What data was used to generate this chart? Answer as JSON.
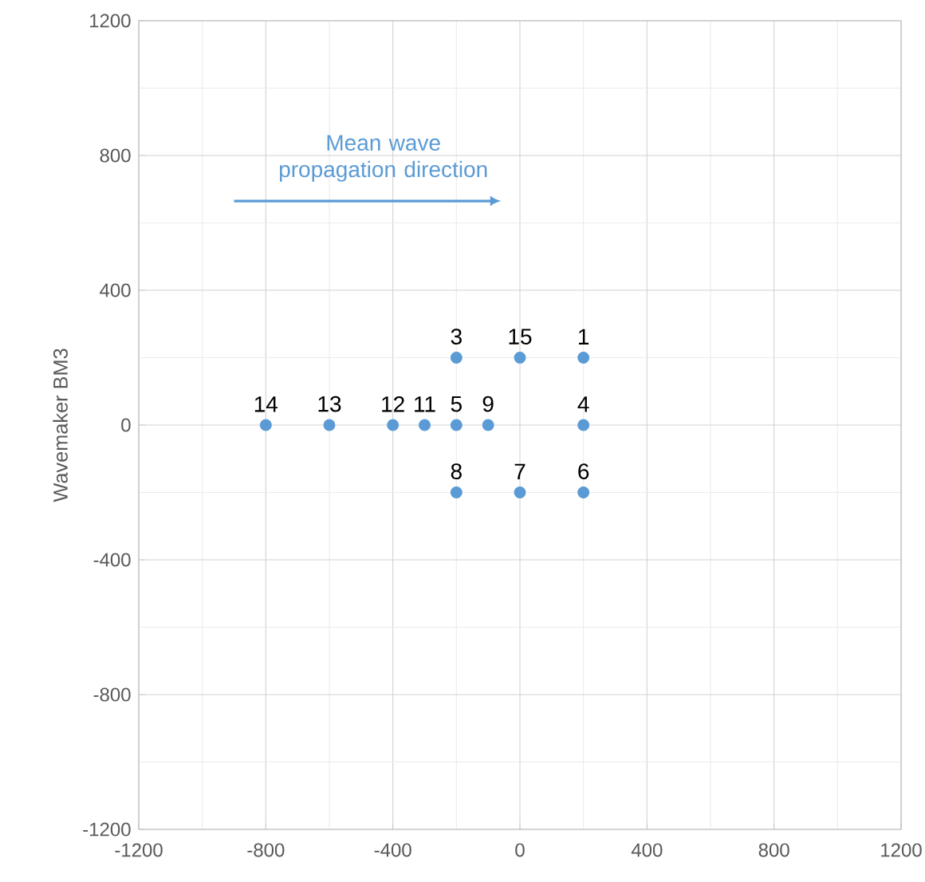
{
  "chart_data": {
    "type": "scatter",
    "ylabel": "Wavemaker BM3",
    "xlim": [
      -1200,
      1200
    ],
    "ylim": [
      -1200,
      1200
    ],
    "xticks": [
      -1200,
      -800,
      -400,
      0,
      400,
      800,
      1200
    ],
    "yticks": [
      -1200,
      -800,
      -400,
      0,
      400,
      800,
      1200
    ],
    "grid": true,
    "marker": "circle",
    "series": [
      {
        "color": "#5b9bd5",
        "x": [
          200,
          -200,
          200,
          -200,
          200,
          0,
          -200,
          -100,
          -300,
          -400,
          -600,
          -800,
          0
        ],
        "values": [
          200,
          200,
          0,
          0,
          -200,
          -200,
          -200,
          0,
          0,
          0,
          0,
          0,
          200
        ]
      }
    ],
    "annotations": [
      "Mean wave propagation direction",
      {
        "text": "1",
        "x": 200,
        "y": 200
      },
      {
        "text": "3",
        "x": -200,
        "y": 200
      },
      {
        "text": "4",
        "x": 200,
        "y": 0
      },
      {
        "text": "5",
        "x": -200,
        "y": 0
      },
      {
        "text": "6",
        "x": 200,
        "y": -200
      },
      {
        "text": "7",
        "x": 0,
        "y": -200
      },
      {
        "text": "8",
        "x": -200,
        "y": -200
      },
      {
        "text": "9",
        "x": -100,
        "y": 0
      },
      {
        "text": "11",
        "x": -300,
        "y": 0
      },
      {
        "text": "12",
        "x": -400,
        "y": 0
      },
      {
        "text": "13",
        "x": -600,
        "y": 0
      },
      {
        "text": "14",
        "x": -800,
        "y": 0
      },
      {
        "text": "15",
        "x": 0,
        "y": 200
      }
    ]
  }
}
